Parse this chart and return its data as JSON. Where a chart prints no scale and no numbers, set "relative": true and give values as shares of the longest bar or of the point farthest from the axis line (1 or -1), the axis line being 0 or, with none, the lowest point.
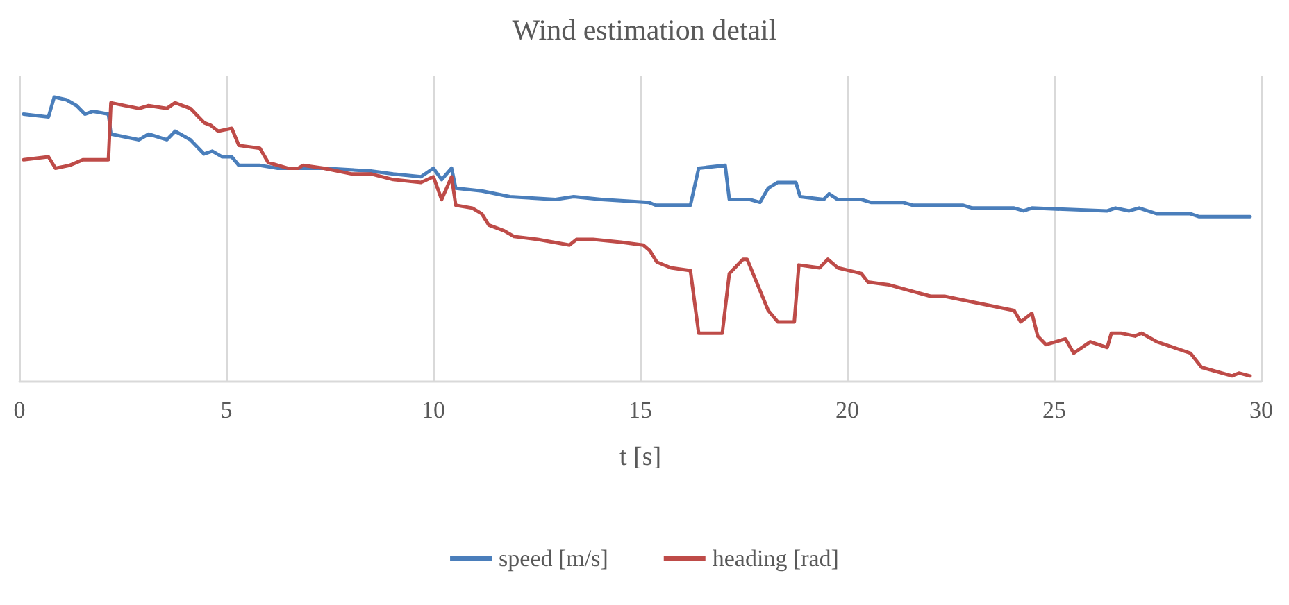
{
  "chart_data": {
    "type": "line",
    "title": "Wind estimation detail",
    "xlabel": "t [s]",
    "relative": true,
    "xlim": [
      0,
      30
    ],
    "xticks": [
      0,
      5,
      10,
      15,
      20,
      25,
      30
    ],
    "grid": "x",
    "legend": "bottom",
    "marker": "none",
    "line_style": "solid",
    "series": [
      {
        "name": "speed [m/s]",
        "color": "#4a7ebb",
        "x": [
          0.1,
          0.7,
          0.84,
          1.14,
          1.38,
          1.58,
          1.78,
          2.15,
          2.21,
          2.89,
          3.12,
          3.56,
          3.76,
          4.13,
          4.46,
          4.66,
          4.9,
          5.13,
          5.3,
          5.81,
          6.24,
          7.35,
          8.49,
          9.03,
          9.7,
          10.0,
          10.2,
          10.44,
          10.54,
          11.17,
          11.85,
          12.95,
          13.39,
          14.06,
          15.2,
          15.37,
          16.21,
          16.41,
          17.05,
          17.15,
          17.65,
          17.89,
          18.09,
          18.32,
          18.76,
          18.86,
          19.43,
          19.56,
          19.77,
          20.34,
          20.57,
          21.34,
          21.58,
          22.79,
          23.02,
          24.03,
          24.26,
          24.46,
          26.28,
          26.48,
          26.81,
          27.05,
          27.48,
          28.29,
          28.49,
          29.3,
          29.4,
          29.73
        ],
        "values": [
          0.94,
          0.93,
          1.0,
          0.99,
          0.97,
          0.94,
          0.95,
          0.94,
          0.87,
          0.85,
          0.87,
          0.85,
          0.88,
          0.85,
          0.8,
          0.81,
          0.79,
          0.79,
          0.76,
          0.76,
          0.75,
          0.75,
          0.74,
          0.73,
          0.72,
          0.75,
          0.71,
          0.75,
          0.68,
          0.67,
          0.65,
          0.64,
          0.65,
          0.64,
          0.63,
          0.62,
          0.62,
          0.75,
          0.76,
          0.64,
          0.64,
          0.63,
          0.68,
          0.7,
          0.7,
          0.65,
          0.64,
          0.66,
          0.64,
          0.64,
          0.63,
          0.63,
          0.62,
          0.62,
          0.61,
          0.61,
          0.6,
          0.61,
          0.6,
          0.61,
          0.6,
          0.61,
          0.59,
          0.59,
          0.58,
          0.58,
          0.58,
          0.58
        ]
      },
      {
        "name": "heading [rad]",
        "color": "#be4b48",
        "x": [
          0.1,
          0.7,
          0.87,
          1.21,
          1.54,
          2.15,
          2.21,
          2.89,
          3.12,
          3.56,
          3.76,
          4.13,
          4.46,
          4.63,
          4.8,
          5.13,
          5.3,
          5.81,
          6.01,
          6.48,
          6.74,
          6.85,
          7.35,
          8.02,
          8.49,
          9.03,
          9.7,
          10.0,
          10.2,
          10.44,
          10.54,
          10.94,
          11.17,
          11.34,
          11.71,
          11.95,
          12.52,
          13.29,
          13.46,
          13.86,
          14.53,
          15.07,
          15.23,
          15.4,
          15.74,
          16.21,
          16.41,
          16.98,
          17.15,
          17.48,
          17.58,
          18.09,
          18.32,
          18.72,
          18.83,
          19.33,
          19.53,
          19.77,
          20.34,
          20.5,
          21.01,
          22.01,
          22.35,
          23.02,
          24.03,
          24.19,
          24.46,
          24.6,
          24.8,
          25.27,
          25.47,
          25.87,
          26.28,
          26.38,
          26.61,
          26.95,
          27.11,
          27.48,
          28.29,
          28.56,
          29.3,
          29.46,
          29.73
        ],
        "values": [
          0.78,
          0.79,
          0.75,
          0.76,
          0.78,
          0.78,
          0.98,
          0.96,
          0.97,
          0.96,
          0.98,
          0.96,
          0.91,
          0.9,
          0.88,
          0.89,
          0.83,
          0.82,
          0.77,
          0.75,
          0.75,
          0.76,
          0.75,
          0.73,
          0.73,
          0.71,
          0.7,
          0.72,
          0.64,
          0.72,
          0.62,
          0.61,
          0.59,
          0.55,
          0.53,
          0.51,
          0.5,
          0.48,
          0.5,
          0.5,
          0.49,
          0.48,
          0.46,
          0.42,
          0.4,
          0.39,
          0.17,
          0.17,
          0.38,
          0.43,
          0.43,
          0.25,
          0.21,
          0.21,
          0.41,
          0.4,
          0.43,
          0.4,
          0.38,
          0.35,
          0.34,
          0.3,
          0.3,
          0.28,
          0.25,
          0.21,
          0.24,
          0.16,
          0.13,
          0.15,
          0.1,
          0.14,
          0.12,
          0.17,
          0.17,
          0.16,
          0.17,
          0.14,
          0.1,
          0.05,
          0.02,
          0.03,
          0.02
        ]
      }
    ]
  }
}
